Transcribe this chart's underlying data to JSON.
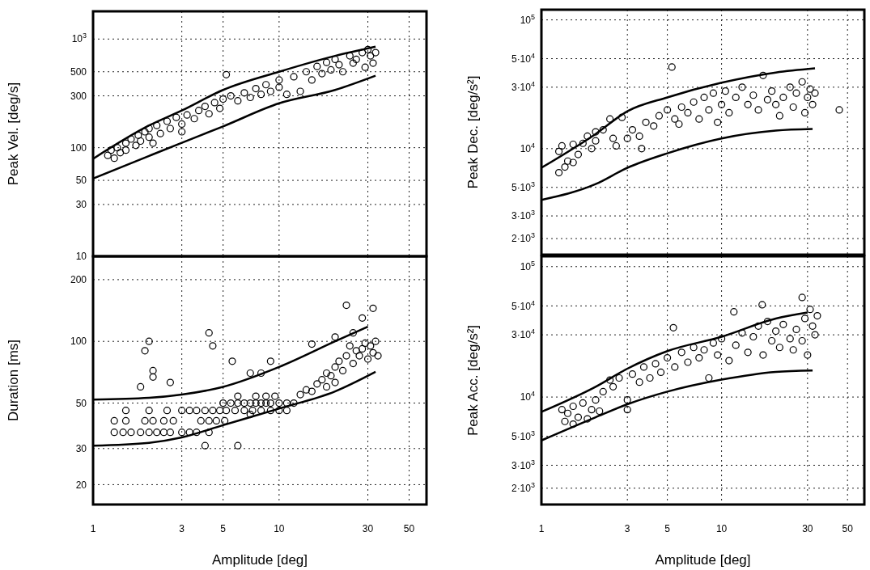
{
  "chart_data": [
    {
      "type": "scatter",
      "ylabel": "Peak Vel. [deg/s]",
      "log": "xy",
      "grid": true,
      "tick_labels": "y",
      "xlim": [
        1,
        62
      ],
      "xticks": [
        1,
        3,
        5,
        10,
        30,
        50
      ],
      "ylim": [
        10,
        1800
      ],
      "yticks": [
        10,
        30,
        50,
        100,
        300,
        500,
        {
          "value": 1000,
          "label": "10$^{3}$"
        }
      ],
      "series": [
        {
          "marker": "circle",
          "color": "#000000",
          "x": [
            1.2,
            1.25,
            1.3,
            1.35,
            1.4,
            1.5,
            1.5,
            1.6,
            1.7,
            1.75,
            1.8,
            1.9,
            2.0,
            2.0,
            2.1,
            2.2,
            2.3,
            2.5,
            2.6,
            2.8,
            3.0,
            3.0,
            3.2,
            3.5,
            3.7,
            4.0,
            4.2,
            4.5,
            4.8,
            5.0,
            5.2,
            5.5,
            6.0,
            6.5,
            7,
            7.5,
            8,
            8.5,
            9,
            10,
            10,
            11,
            12,
            13,
            14,
            15,
            16,
            17,
            18,
            19,
            20,
            21,
            22,
            24,
            25,
            26,
            28,
            29,
            30,
            31,
            32,
            33
          ],
          "values": [
            85,
            95,
            80,
            100,
            90,
            110,
            95,
            120,
            105,
            130,
            115,
            140,
            125,
            150,
            110,
            160,
            135,
            175,
            150,
            190,
            165,
            140,
            200,
            185,
            220,
            240,
            205,
            260,
            230,
            280,
            470,
            300,
            270,
            320,
            290,
            350,
            310,
            380,
            330,
            420,
            360,
            310,
            450,
            330,
            500,
            420,
            560,
            480,
            610,
            520,
            650,
            580,
            500,
            700,
            600,
            650,
            750,
            550,
            800,
            700,
            600,
            750
          ]
        },
        {
          "type": "line",
          "color": "#000000",
          "x": [
            1,
            2,
            3,
            5,
            10,
            20,
            33
          ],
          "values": [
            79,
            160,
            220,
            340,
            500,
            700,
            850
          ]
        },
        {
          "type": "line",
          "color": "#000000",
          "x": [
            1,
            2,
            3,
            5,
            10,
            20,
            33
          ],
          "values": [
            52,
            84,
            111,
            157,
            256,
            340,
            460
          ]
        }
      ]
    },
    {
      "type": "scatter",
      "xlabel": "Amplitude [deg]",
      "ylabel": "Duration [ms]",
      "log": "xy",
      "grid": true,
      "xlim": [
        1,
        62
      ],
      "xticks": [
        1,
        3,
        5,
        10,
        30,
        50
      ],
      "ylim": [
        16,
        260
      ],
      "yticks": [
        20,
        30,
        50,
        100,
        200
      ],
      "series": [
        {
          "marker": "circle",
          "color": "#000000",
          "x": [
            1.5,
            2,
            2.5,
            3,
            3.3,
            3.6,
            4,
            4.4,
            4.8,
            5.2,
            5.8,
            6.5,
            7.2,
            8,
            9,
            10,
            11,
            1.3,
            1.5,
            1.9,
            2.1,
            2.4,
            2.7,
            3.8,
            4.2,
            4.6,
            5.1,
            1.3,
            1.45,
            1.6,
            1.8,
            2.0,
            2.2,
            2.4,
            2.6,
            3.0,
            3.3,
            3.6,
            4.2,
            5,
            5.5,
            6,
            6.5,
            7,
            7.5,
            8,
            8.5,
            9,
            10,
            11,
            12,
            6,
            7.5,
            8.5,
            9.5,
            13,
            14,
            15,
            16,
            17,
            18,
            18,
            19,
            20,
            20,
            21,
            22,
            23,
            24,
            25,
            26,
            27,
            28,
            29,
            30,
            31,
            32,
            33,
            25,
            28,
            32,
            34,
            23,
            20,
            15,
            4,
            6,
            7,
            1.9,
            2.0,
            2.1,
            2.1,
            1.8,
            2.6,
            4.2,
            4.4,
            5.6,
            7,
            8,
            9
          ],
          "values": [
            46,
            46,
            46,
            46,
            46,
            46,
            46,
            46,
            46,
            46,
            46,
            46,
            46,
            46,
            46,
            46,
            46,
            41,
            41,
            41,
            41,
            41,
            41,
            41,
            41,
            41,
            41,
            36,
            36,
            36,
            36,
            36,
            36,
            36,
            36,
            36,
            36,
            36,
            36,
            50,
            50,
            50,
            50,
            50,
            50,
            50,
            50,
            50,
            50,
            50,
            50,
            54,
            54,
            54,
            54,
            55,
            58,
            57,
            62,
            65,
            60,
            70,
            68,
            75,
            63,
            80,
            72,
            85,
            95,
            78,
            90,
            85,
            92,
            98,
            82,
            95,
            88,
            100,
            110,
            130,
            145,
            85,
            150,
            105,
            97,
            31,
            31,
            44,
            90,
            100,
            72,
            67,
            60,
            63,
            110,
            95,
            80,
            70,
            70,
            80
          ]
        },
        {
          "type": "line",
          "color": "#000000",
          "x": [
            1,
            2,
            3,
            5,
            10,
            20,
            30
          ],
          "values": [
            52,
            53,
            55,
            60,
            75,
            100,
            118
          ]
        },
        {
          "type": "line",
          "color": "#000000",
          "x": [
            1,
            2,
            3,
            5,
            10,
            20,
            33
          ],
          "values": [
            31,
            32,
            34,
            39,
            47,
            57,
            71
          ]
        }
      ]
    },
    {
      "type": "scatter",
      "ylabel": "Peak Dec.  [deg/s²]",
      "log": "xy",
      "grid": true,
      "tick_labels": "y",
      "xlim": [
        1,
        62
      ],
      "xticks": [
        1,
        3,
        5,
        10,
        30,
        50
      ],
      "ylim": [
        1500,
        120000
      ],
      "yticks": [
        {
          "value": 2000,
          "label": "2·10$^{3}$"
        },
        {
          "value": 3000,
          "label": "3·10$^{3}$"
        },
        {
          "value": 5000,
          "label": "5·10$^{3}$"
        },
        {
          "value": 10000,
          "label": "10$^{4}$"
        },
        {
          "value": 30000,
          "label": "3·10$^{4}$"
        },
        {
          "value": 50000,
          "label": "5·10$^{4}$"
        },
        {
          "value": 100000,
          "label": "10$^{5}$"
        }
      ],
      "series": [
        {
          "marker": "circle",
          "color": "#000000",
          "x": [
            1.25,
            1.3,
            1.25,
            1.35,
            1.4,
            1.5,
            1.5,
            1.6,
            1.7,
            1.8,
            1.9,
            2.0,
            2.0,
            2.2,
            2.4,
            2.5,
            2.6,
            2.8,
            3.0,
            3.2,
            3.5,
            3.6,
            3.8,
            4.2,
            4.5,
            5,
            5.3,
            5.5,
            5.8,
            6,
            6.5,
            7,
            7.5,
            8,
            8.5,
            9,
            9.5,
            10,
            10.5,
            11,
            12,
            13,
            14,
            15,
            16,
            17,
            18,
            19,
            20,
            21,
            22,
            24,
            25,
            26,
            28,
            29,
            30,
            31,
            32,
            33,
            45
          ],
          "values": [
            9500,
            10500,
            6500,
            7200,
            8000,
            7800,
            10800,
            9000,
            11000,
            12500,
            10000,
            13500,
            11500,
            14000,
            17000,
            12000,
            10500,
            17500,
            12000,
            14000,
            12500,
            10000,
            16000,
            15000,
            18000,
            20000,
            43000,
            17000,
            15500,
            21000,
            19000,
            23000,
            17000,
            25000,
            20000,
            27000,
            16000,
            22000,
            28000,
            19000,
            25000,
            30000,
            22000,
            26000,
            20000,
            37000,
            24000,
            28000,
            22000,
            18000,
            25000,
            30000,
            21000,
            27000,
            33000,
            19000,
            25000,
            29000,
            22000,
            27000,
            20000
          ]
        },
        {
          "type": "line",
          "color": "#000000",
          "x": [
            1,
            2,
            3,
            5,
            10,
            20,
            33
          ],
          "values": [
            7100,
            13000,
            19500,
            25000,
            32500,
            39000,
            42000
          ]
        },
        {
          "type": "line",
          "color": "#000000",
          "x": [
            1,
            2,
            3,
            5,
            10,
            20,
            32
          ],
          "values": [
            4000,
            5300,
            7100,
            9200,
            12000,
            13800,
            14200
          ]
        }
      ]
    },
    {
      "type": "scatter",
      "xlabel": "Amplitude [deg]",
      "ylabel": "Peak Acc.  [deg/s²]",
      "log": "xy",
      "grid": true,
      "xlim": [
        1,
        62
      ],
      "xticks": [
        1,
        3,
        5,
        10,
        30,
        50
      ],
      "ylim": [
        1500,
        120000
      ],
      "yticks": [
        {
          "value": 2000,
          "label": "2·10$^{3}$"
        },
        {
          "value": 3000,
          "label": "3·10$^{3}$"
        },
        {
          "value": 5000,
          "label": "5·10$^{3}$"
        },
        {
          "value": 10000,
          "label": "10$^{4}$"
        },
        {
          "value": 30000,
          "label": "3·10$^{4}$"
        },
        {
          "value": 50000,
          "label": "5·10$^{4}$"
        },
        {
          "value": 100000,
          "label": "10$^{5}$"
        }
      ],
      "series": [
        {
          "marker": "circle",
          "color": "#000000",
          "x": [
            1.3,
            1.35,
            1.4,
            1.5,
            1.5,
            1.6,
            1.7,
            1.8,
            1.9,
            2.0,
            2.1,
            2.2,
            2.4,
            2.5,
            2.7,
            3.0,
            3.0,
            3.2,
            3.5,
            3.7,
            4,
            4.3,
            4.6,
            5,
            5.4,
            5.5,
            6,
            6.5,
            7,
            7.5,
            8,
            8.5,
            9,
            9.5,
            10,
            11,
            11.7,
            12,
            13,
            14,
            15,
            16,
            16.8,
            17,
            18,
            19,
            20,
            21,
            22,
            24,
            25,
            26,
            28,
            28,
            29,
            30,
            31,
            32,
            33,
            34
          ],
          "values": [
            8000,
            6500,
            7500,
            8500,
            6200,
            7000,
            9000,
            6800,
            8000,
            9500,
            7800,
            11000,
            13500,
            12000,
            14000,
            9500,
            8000,
            15000,
            13000,
            17000,
            14000,
            18000,
            15500,
            20000,
            34000,
            17000,
            22000,
            18500,
            24000,
            20000,
            23000,
            14000,
            26000,
            21000,
            28000,
            19000,
            45000,
            25000,
            31000,
            22000,
            29000,
            35000,
            51000,
            21000,
            38000,
            27000,
            32000,
            24000,
            36000,
            28000,
            23000,
            33000,
            58000,
            27000,
            40000,
            21000,
            47000,
            35000,
            30000,
            42000
          ]
        },
        {
          "type": "line",
          "color": "#000000",
          "x": [
            1,
            2,
            3,
            5,
            10,
            20,
            30
          ],
          "values": [
            7700,
            12000,
            16500,
            22500,
            29000,
            40000,
            44500
          ]
        },
        {
          "type": "line",
          "color": "#000000",
          "x": [
            1,
            2,
            3,
            5,
            10,
            20,
            32
          ],
          "values": [
            4650,
            7000,
            8800,
            11000,
            13600,
            15600,
            16000
          ]
        }
      ]
    }
  ]
}
